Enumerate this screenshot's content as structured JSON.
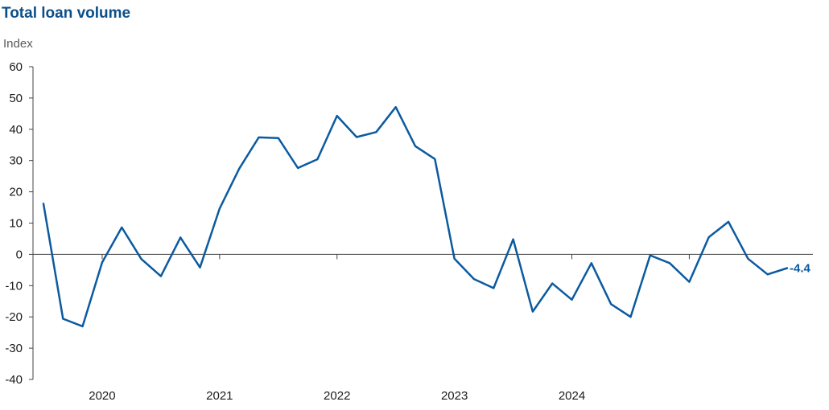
{
  "chart_data": {
    "type": "line",
    "title": "Total loan volume",
    "ylabel": "Index",
    "xlabel": "",
    "ylim": [
      -40,
      60
    ],
    "yticks": [
      60,
      50,
      40,
      30,
      20,
      10,
      0,
      -10,
      -20,
      -30,
      -40
    ],
    "year_labels": [
      "2020",
      "2021",
      "2022",
      "2023",
      "2024"
    ],
    "x_start": "2019-07",
    "x_end": "2024-12",
    "grid": false,
    "series": [
      {
        "color": "#0b5aa0",
        "points": [
          {
            "x": "2019-07",
            "y": 16.2
          },
          {
            "x": "2019-09",
            "y": -20.6
          },
          {
            "x": "2019-11",
            "y": -23.0
          },
          {
            "x": "2020-01",
            "y": -2.6
          },
          {
            "x": "2020-03",
            "y": 8.6
          },
          {
            "x": "2020-05",
            "y": -1.5
          },
          {
            "x": "2020-07",
            "y": -7.0
          },
          {
            "x": "2020-09",
            "y": 5.4
          },
          {
            "x": "2020-11",
            "y": -4.2
          },
          {
            "x": "2021-01",
            "y": 14.6
          },
          {
            "x": "2021-03",
            "y": 27.4
          },
          {
            "x": "2021-05",
            "y": 37.4
          },
          {
            "x": "2021-07",
            "y": 37.2
          },
          {
            "x": "2021-09",
            "y": 27.6
          },
          {
            "x": "2021-11",
            "y": 30.4
          },
          {
            "x": "2022-01",
            "y": 44.3
          },
          {
            "x": "2022-03",
            "y": 37.5
          },
          {
            "x": "2022-05",
            "y": 39.1
          },
          {
            "x": "2022-07",
            "y": 47.1
          },
          {
            "x": "2022-09",
            "y": 34.6
          },
          {
            "x": "2022-11",
            "y": 30.5
          },
          {
            "x": "2023-01",
            "y": -1.4
          },
          {
            "x": "2023-03",
            "y": -7.9
          },
          {
            "x": "2023-05",
            "y": -10.8
          },
          {
            "x": "2023-07",
            "y": 4.8
          },
          {
            "x": "2023-09",
            "y": -18.3
          },
          {
            "x": "2023-11",
            "y": -9.3
          },
          {
            "x": "2024-01",
            "y": -14.5
          },
          {
            "x": "2024-03",
            "y": -2.8
          },
          {
            "x": "2024-05",
            "y": -15.9
          },
          {
            "x": "2024-07",
            "y": -20.0
          },
          {
            "x": "2024-09",
            "y": -0.3
          },
          {
            "x": "2024-11",
            "y": -2.8
          },
          {
            "x": "2025-01",
            "y": -8.8
          },
          {
            "x": "2025-03",
            "y": 5.5
          },
          {
            "x": "2025-05",
            "y": 10.4
          },
          {
            "x": "2025-07",
            "y": -1.4
          },
          {
            "x": "2025-09",
            "y": -6.4
          },
          {
            "x": "2025-11",
            "y": -4.4
          }
        ]
      }
    ],
    "last_value_label": "-4.4"
  }
}
